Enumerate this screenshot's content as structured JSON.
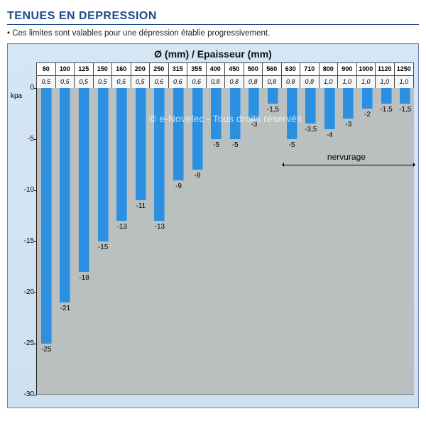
{
  "title": "TENUES EN DEPRESSION",
  "subtitle": "• Ces limites sont valables pour une dépression établie progressivement.",
  "chart": {
    "type": "bar",
    "title": "Ø (mm) / Epaisseur (mm)",
    "ylabel": "kpa",
    "ylim": [
      -30,
      0
    ],
    "ytick_step": 5,
    "yticks": [
      0,
      -5,
      -10,
      -15,
      -20,
      -25,
      -30
    ],
    "background_color": "#babfc0",
    "frame_background": "#d5e6f5",
    "bar_color": "#2a90df",
    "header_bg": "#ffffff",
    "header_bg2": "#f4f6f8",
    "border_color": "#4a4a4a",
    "bar_width_ratio": 0.56,
    "label_fontsize": 10,
    "title_fontsize": 14,
    "categories_diameter": [
      "80",
      "100",
      "125",
      "150",
      "160",
      "200",
      "250",
      "315",
      "355",
      "400",
      "450",
      "500",
      "560",
      "630",
      "710",
      "800",
      "900",
      "1000",
      "1120",
      "1250"
    ],
    "categories_thickness": [
      "0,5",
      "0,5",
      "0,5",
      "0,5",
      "0,5",
      "0,5",
      "0,6",
      "0,6",
      "0,6",
      "0,8",
      "0,8",
      "0,8",
      "0,8",
      "0,8",
      "0,8",
      "1,0",
      "1,0",
      "1,0",
      "1,0",
      "1,0"
    ],
    "values": [
      -25,
      -21,
      -18,
      -15,
      -13,
      -11,
      -13,
      -9,
      -8,
      -5,
      -5,
      -3,
      -1.5,
      -5,
      -3.5,
      -4,
      -3,
      -2,
      -1.5,
      -1.5
    ],
    "value_labels": [
      "-25",
      "-21",
      "-18",
      "-15",
      "-13",
      "-11",
      "-13",
      "-9",
      "-8",
      "-5",
      "-5",
      "-3",
      "-1,5",
      "-5",
      "-3,5",
      "-4",
      "-3",
      "-2",
      "-1,5",
      "-1,5"
    ],
    "nervurage": {
      "label": "nervurage",
      "start_index": 13,
      "end_index": 19
    }
  },
  "watermark": "© e-Novelec - Tous droits réservés"
}
